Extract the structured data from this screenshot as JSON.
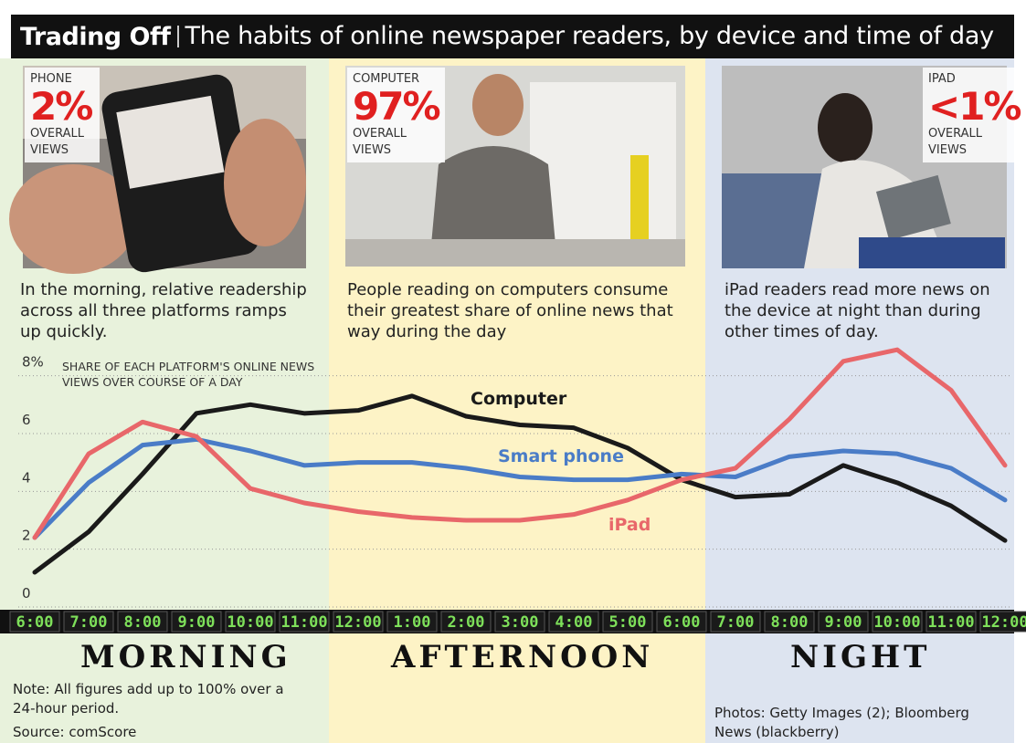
{
  "header": {
    "title": "Trading Off",
    "subtitle": "The habits of online newspaper readers, by device and time of day"
  },
  "panels": [
    {
      "device": "PHONE",
      "share": "2%",
      "label": "OVERALL VIEWS",
      "caption": "In the morning, relative readership across all three platforms ramps up quickly."
    },
    {
      "device": "COMPUTER",
      "share": "97%",
      "label": "OVERALL VIEWS",
      "caption": "People reading on computers consume their greatest share of online news that way during the day"
    },
    {
      "device": "IPAD",
      "share": "<1%",
      "label": "OVERALL VIEWS",
      "caption": "iPad readers read more news on the device at night than during other times of day."
    }
  ],
  "chart_data": {
    "type": "line",
    "y_label": "SHARE OF EACH PLATFORM'S ONLINE NEWS VIEWS OVER COURSE OF A DAY",
    "categories": [
      "6:00",
      "7:00",
      "8:00",
      "9:00",
      "10:00",
      "11:00",
      "12:00",
      "1:00",
      "2:00",
      "3:00",
      "4:00",
      "5:00",
      "6:00",
      "7:00",
      "8:00",
      "9:00",
      "10:00",
      "11:00",
      "12:00"
    ],
    "series": [
      {
        "name": "Computer",
        "color": "#1a1a1a",
        "values": [
          1.2,
          2.6,
          4.6,
          6.7,
          7.0,
          6.7,
          6.8,
          7.3,
          6.6,
          6.3,
          6.2,
          5.5,
          4.4,
          3.8,
          3.9,
          4.9,
          4.3,
          3.5,
          2.3
        ]
      },
      {
        "name": "Smart phone",
        "color": "#4a7cc7",
        "values": [
          2.4,
          4.3,
          5.6,
          5.8,
          5.4,
          4.9,
          5.0,
          5.0,
          4.8,
          4.5,
          4.4,
          4.4,
          4.6,
          4.5,
          5.2,
          5.4,
          5.3,
          4.8,
          3.7
        ]
      },
      {
        "name": "iPad",
        "color": "#e8676a",
        "values": [
          2.4,
          5.3,
          6.4,
          5.9,
          4.1,
          3.6,
          3.3,
          3.1,
          3.0,
          3.0,
          3.2,
          3.7,
          4.4,
          4.8,
          6.5,
          8.5,
          8.9,
          7.5,
          4.9
        ]
      }
    ],
    "ylim": [
      0,
      9
    ],
    "yticks": [
      0,
      2,
      4,
      {
        "value": 8,
        "label": "8%"
      },
      6
    ],
    "grid": true
  },
  "periods": [
    "MORNING",
    "AFTERNOON",
    "NIGHT"
  ],
  "note": "Note: All figures add up to 100% over a 24-hour period.",
  "source": "Source: comScore",
  "credit": "Photos: Getty Images (2); Bloomberg News (blackberry)"
}
